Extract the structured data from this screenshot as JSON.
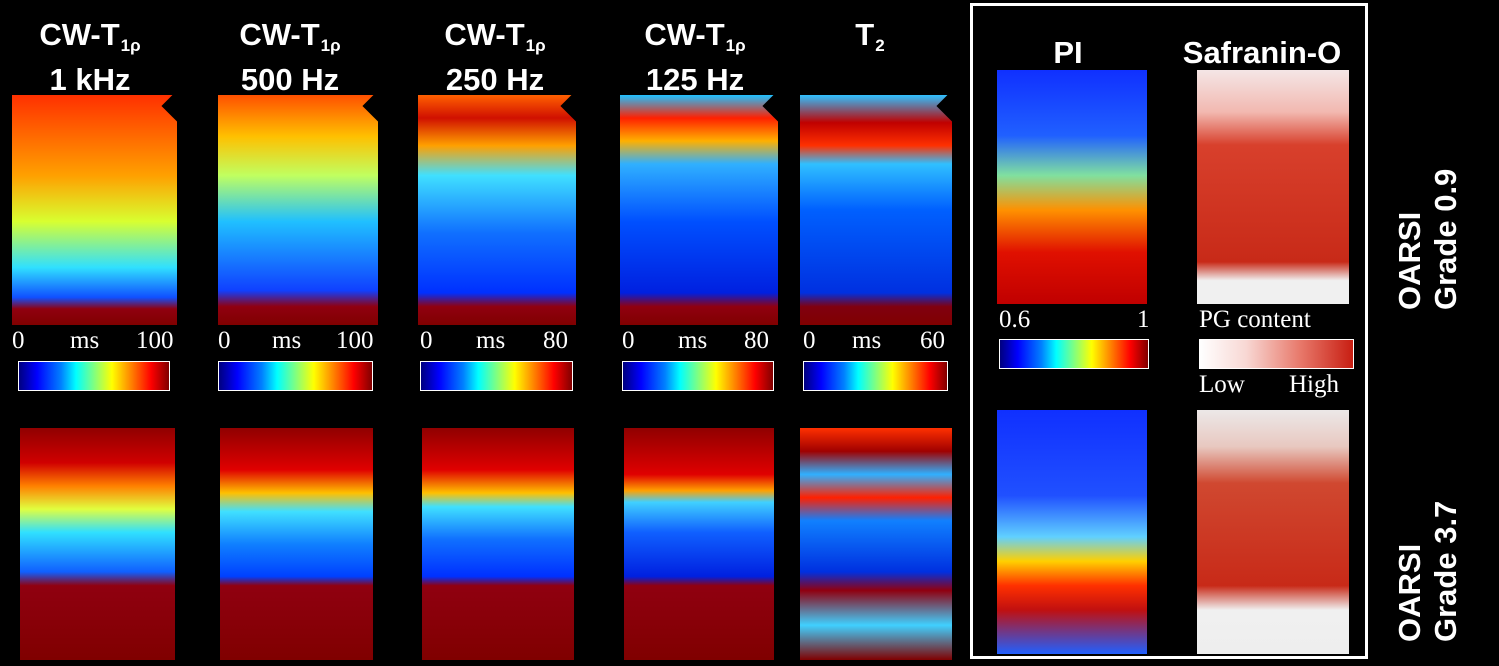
{
  "columns": [
    {
      "title_main": "CW-T",
      "title_sub": "1ρ",
      "title_line2": "1 kHz",
      "scale_min": "0",
      "scale_unit": "ms",
      "scale_max": "100"
    },
    {
      "title_main": "CW-T",
      "title_sub": "1ρ",
      "title_line2": "500 Hz",
      "scale_min": "0",
      "scale_unit": "ms",
      "scale_max": "100"
    },
    {
      "title_main": "CW-T",
      "title_sub": "1ρ",
      "title_line2": "250 Hz",
      "scale_min": "0",
      "scale_unit": "ms",
      "scale_max": "80"
    },
    {
      "title_main": "CW-T",
      "title_sub": "1ρ",
      "title_line2": "125 Hz",
      "scale_min": "0",
      "scale_unit": "ms",
      "scale_max": "80"
    },
    {
      "title_main": "T",
      "title_sub": "2",
      "title_line2": "",
      "scale_min": "0",
      "scale_unit": "ms",
      "scale_max": "60"
    }
  ],
  "panel": {
    "pi_title": "PI",
    "safranin_title": "Safranin-O",
    "pi_scale_min": "0.6",
    "pi_scale_max": "1",
    "pg_label": "PG content",
    "pg_low": "Low",
    "pg_high": "High"
  },
  "row_labels": [
    {
      "line1": "OARSI",
      "line2": "Grade 0.9"
    },
    {
      "line1": "OARSI",
      "line2": "Grade 3.7"
    }
  ],
  "colors": {
    "background": "#000000",
    "jet_dark_red": "#800000",
    "jet_blue": "#0000ff",
    "safranin_red": "#c81e12"
  }
}
